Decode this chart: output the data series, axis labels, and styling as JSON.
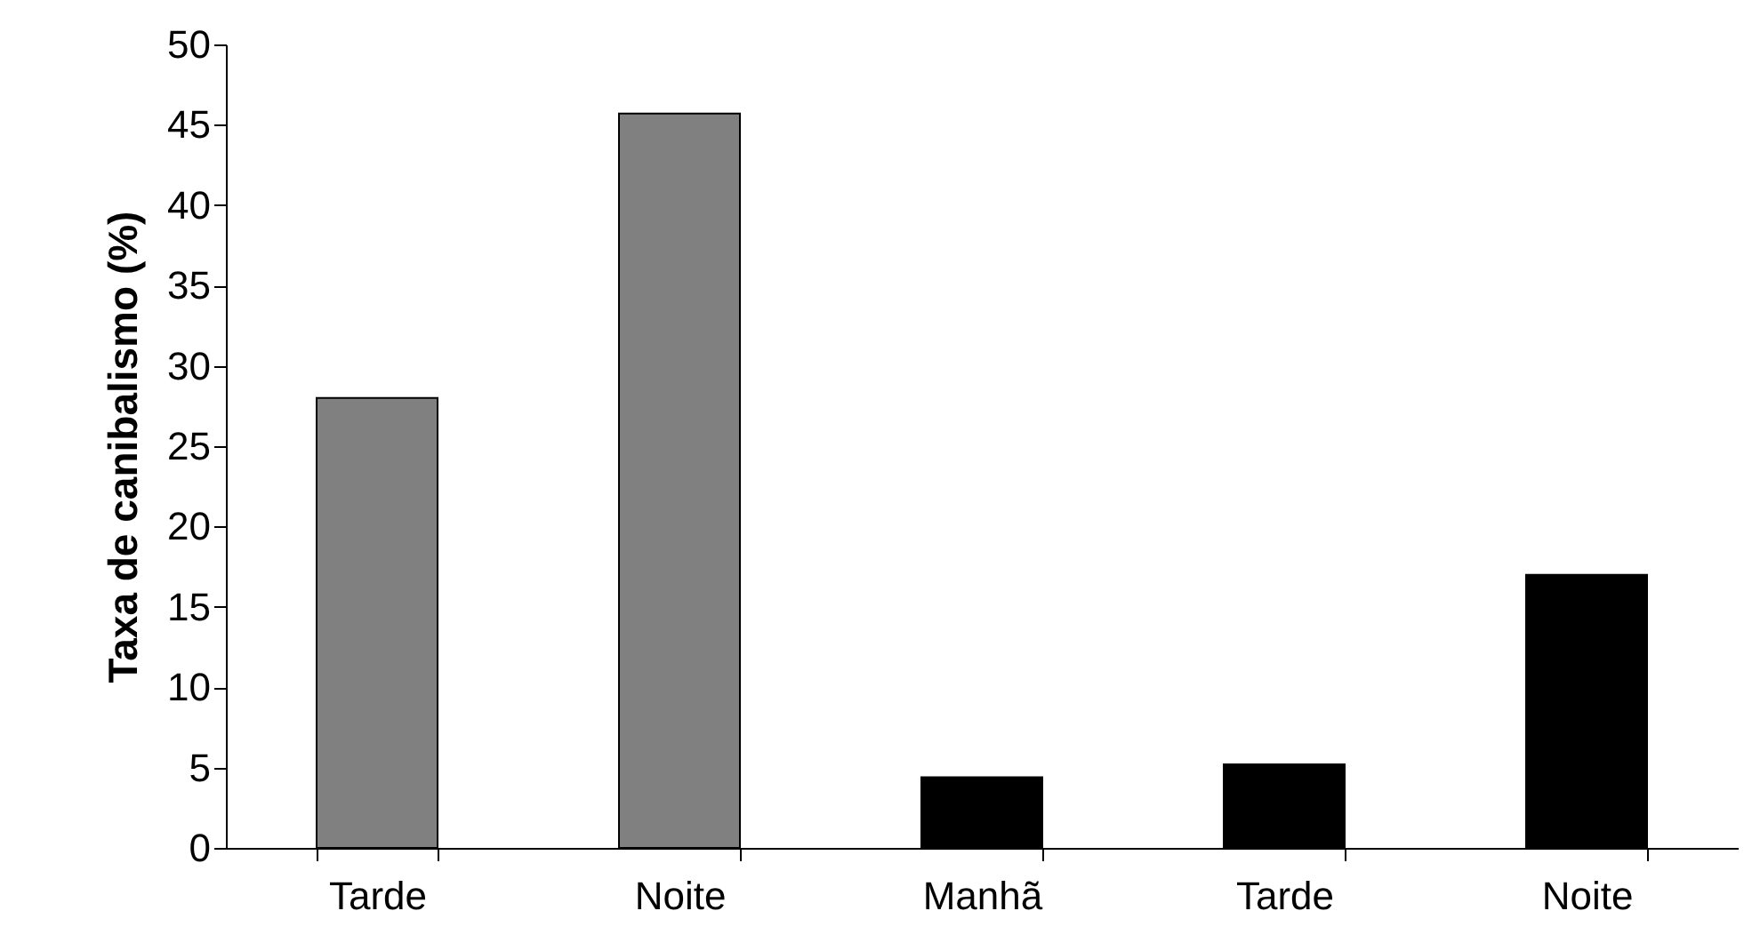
{
  "chart_data": {
    "type": "bar",
    "ylabel": "Taxa de canibalismo (%)",
    "categories": [
      "Tarde",
      "Noite",
      "Manhã",
      "Tarde",
      "Noite"
    ],
    "values": [
      28,
      45.7,
      4.4,
      5.2,
      17
    ],
    "colors": [
      "#808080",
      "#808080",
      "#000000",
      "#000000",
      "#000000"
    ],
    "ylim": [
      0,
      50
    ],
    "yticks": [
      0,
      5,
      10,
      15,
      20,
      25,
      30,
      35,
      40,
      45,
      50
    ],
    "grid": false
  }
}
